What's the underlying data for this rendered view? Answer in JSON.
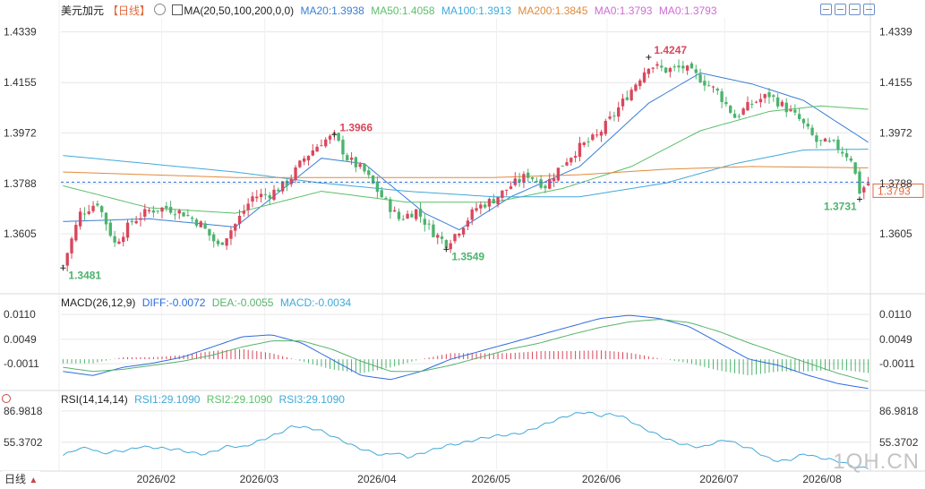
{
  "header": {
    "symbol": "美元加元",
    "period": "【日线】",
    "ma_legend": "MA(20,50,100,200,0,0)",
    "ma20": "MA20:1.3938",
    "ma50": "MA50:1.4058",
    "ma100": "MA100:1.3913",
    "ma200": "MA200:1.3845",
    "ma0a": "MA0:1.3793",
    "ma0b": "MA0:1.3793"
  },
  "macd_header": {
    "label": "MACD(26,12,9)",
    "diff": "DIFF:-0.0072",
    "dea": "DEA:-0.0055",
    "macd": "MACD:-0.0034"
  },
  "rsi_header": {
    "label": "RSI(14,14,14)",
    "rsi1": "RSI1:29.1090",
    "rsi2": "RSI2:29.1090",
    "rsi3": "RSI3:29.1090"
  },
  "timeframe_label": "日线",
  "watermark": "1QH.CN",
  "colors": {
    "up": "#d9475c",
    "down": "#4cb36d",
    "ma20": "#3a7fd5",
    "ma50": "#5cbf6a",
    "ma100": "#41a9d9",
    "ma200": "#e08a3c",
    "diff": "#2d6cdf",
    "dea": "#58b36b",
    "rsi": "#41a9d9",
    "price_line": "#2a6fd6",
    "grid": "#e6e6e6"
  },
  "chart_data": [
    {
      "type": "candlestick",
      "title": "美元加元【日线】",
      "x_ticks": [
        "2026/02",
        "2026/03",
        "2026/04",
        "2026/05",
        "2026/06",
        "2026/07",
        "2026/08"
      ],
      "y_ticks": [
        1.4339,
        1.4155,
        1.3972,
        1.3788,
        1.3605
      ],
      "ylim": [
        1.342,
        1.439
      ],
      "current_price": 1.3793,
      "current_price_label": "1.3793",
      "annotations": [
        {
          "label": "1.3481",
          "value": 1.3481,
          "kind": "low"
        },
        {
          "label": "1.3966",
          "value": 1.3966,
          "kind": "high"
        },
        {
          "label": "1.3549",
          "value": 1.3549,
          "kind": "low"
        },
        {
          "label": "1.4247",
          "value": 1.4247,
          "kind": "high"
        },
        {
          "label": "1.3731",
          "value": 1.3731,
          "kind": "low"
        }
      ],
      "close_path": [
        [
          0,
          1.349
        ],
        [
          4,
          1.368
        ],
        [
          8,
          1.372
        ],
        [
          12,
          1.357
        ],
        [
          16,
          1.365
        ],
        [
          20,
          1.369
        ],
        [
          24,
          1.37
        ],
        [
          28,
          1.368
        ],
        [
          32,
          1.364
        ],
        [
          36,
          1.356
        ],
        [
          40,
          1.364
        ],
        [
          44,
          1.374
        ],
        [
          48,
          1.375
        ],
        [
          52,
          1.379
        ],
        [
          56,
          1.388
        ],
        [
          60,
          1.394
        ],
        [
          63,
          1.396
        ],
        [
          66,
          1.388
        ],
        [
          70,
          1.383
        ],
        [
          74,
          1.374
        ],
        [
          78,
          1.366
        ],
        [
          82,
          1.369
        ],
        [
          86,
          1.361
        ],
        [
          89,
          1.357
        ],
        [
          92,
          1.362
        ],
        [
          96,
          1.37
        ],
        [
          100,
          1.373
        ],
        [
          104,
          1.378
        ],
        [
          108,
          1.382
        ],
        [
          112,
          1.378
        ],
        [
          116,
          1.386
        ],
        [
          120,
          1.392
        ],
        [
          124,
          1.396
        ],
        [
          128,
          1.404
        ],
        [
          132,
          1.413
        ],
        [
          136,
          1.422
        ],
        [
          140,
          1.42
        ],
        [
          144,
          1.421
        ],
        [
          148,
          1.417
        ],
        [
          152,
          1.412
        ],
        [
          156,
          1.403
        ],
        [
          160,
          1.408
        ],
        [
          164,
          1.411
        ],
        [
          168,
          1.406
        ],
        [
          171,
          1.402
        ],
        [
          175,
          1.394
        ],
        [
          179,
          1.393
        ],
        [
          183,
          1.388
        ],
        [
          185,
          1.376
        ],
        [
          187,
          1.379
        ]
      ],
      "ma_paths": {
        "ma20": [
          [
            0,
            1.365
          ],
          [
            20,
            1.366
          ],
          [
            40,
            1.363
          ],
          [
            60,
            1.388
          ],
          [
            70,
            1.386
          ],
          [
            84,
            1.368
          ],
          [
            92,
            1.362
          ],
          [
            104,
            1.374
          ],
          [
            120,
            1.385
          ],
          [
            136,
            1.408
          ],
          [
            148,
            1.419
          ],
          [
            160,
            1.415
          ],
          [
            172,
            1.409
          ],
          [
            187,
            1.3938
          ]
        ],
        "ma50": [
          [
            0,
            1.378
          ],
          [
            20,
            1.37
          ],
          [
            40,
            1.368
          ],
          [
            60,
            1.376
          ],
          [
            80,
            1.372
          ],
          [
            100,
            1.372
          ],
          [
            116,
            1.377
          ],
          [
            132,
            1.385
          ],
          [
            148,
            1.398
          ],
          [
            164,
            1.405
          ],
          [
            176,
            1.407
          ],
          [
            187,
            1.4058
          ]
        ],
        "ma100": [
          [
            0,
            1.389
          ],
          [
            20,
            1.386
          ],
          [
            40,
            1.383
          ],
          [
            60,
            1.379
          ],
          [
            80,
            1.376
          ],
          [
            100,
            1.374
          ],
          [
            120,
            1.374
          ],
          [
            140,
            1.379
          ],
          [
            156,
            1.386
          ],
          [
            172,
            1.391
          ],
          [
            187,
            1.3913
          ]
        ],
        "ma200": [
          [
            0,
            1.383
          ],
          [
            20,
            1.382
          ],
          [
            40,
            1.381
          ],
          [
            60,
            1.381
          ],
          [
            80,
            1.381
          ],
          [
            100,
            1.381
          ],
          [
            120,
            1.382
          ],
          [
            140,
            1.384
          ],
          [
            160,
            1.385
          ],
          [
            187,
            1.3845
          ]
        ]
      }
    },
    {
      "type": "macd",
      "title": "MACD(26,12,9)",
      "y_ticks": [
        0.011,
        0.0049,
        -0.0011
      ],
      "y_tick_labels": [
        "0.0110",
        "0.0049",
        "-0.0011"
      ],
      "ylim": [
        -0.0068,
        0.013
      ],
      "series": [
        {
          "name": "DIFF",
          "values": [
            -0.003,
            -0.004,
            -0.002,
            -0.001,
            0.0005,
            0.003,
            0.0055,
            0.006,
            0.004,
            0.0,
            -0.004,
            -0.005,
            -0.003,
            0.0,
            0.002,
            0.004,
            0.006,
            0.008,
            0.01,
            0.0108,
            0.01,
            0.008,
            0.004,
            0.0,
            -0.0015,
            -0.004,
            -0.006,
            -0.0072
          ]
        },
        {
          "name": "DEA",
          "values": [
            -0.002,
            -0.003,
            -0.0025,
            -0.0015,
            -0.0005,
            0.001,
            0.003,
            0.0045,
            0.0045,
            0.0025,
            -0.0005,
            -0.003,
            -0.003,
            -0.0015,
            0.0005,
            0.0025,
            0.004,
            0.006,
            0.0078,
            0.0092,
            0.0098,
            0.009,
            0.0068,
            0.004,
            0.0015,
            -0.001,
            -0.0035,
            -0.0055
          ]
        }
      ],
      "histogram": [
        -0.001,
        -0.001,
        0.0005,
        0.0005,
        0.001,
        0.002,
        0.0025,
        0.0015,
        -0.0005,
        -0.0025,
        -0.0035,
        -0.002,
        0.0,
        0.0015,
        0.0015,
        0.0015,
        0.002,
        0.002,
        0.0022,
        0.0016,
        0.0002,
        -0.001,
        -0.0028,
        -0.004,
        -0.003,
        -0.003,
        -0.0025,
        -0.0034
      ]
    },
    {
      "type": "line",
      "title": "RSI(14,14,14)",
      "y_ticks": [
        86.9818,
        55.3702
      ],
      "y_tick_labels": [
        "86.9818",
        "55.3702"
      ],
      "ylim": [
        28,
        95
      ],
      "series": [
        {
          "name": "RSI",
          "values": [
            42,
            48,
            50,
            44,
            46,
            47,
            51,
            50,
            49,
            48,
            45,
            43,
            47,
            52,
            50,
            55,
            60,
            65,
            72,
            70,
            68,
            62,
            56,
            50,
            46,
            42,
            45,
            40,
            44,
            48,
            52,
            54,
            57,
            60,
            62,
            63,
            65,
            70,
            75,
            80,
            84,
            86,
            82,
            84,
            80,
            72,
            66,
            60,
            55,
            52,
            50,
            55,
            58,
            52,
            48,
            40,
            36,
            38,
            44,
            40,
            38,
            35,
            30,
            29
          ]
        }
      ]
    }
  ]
}
